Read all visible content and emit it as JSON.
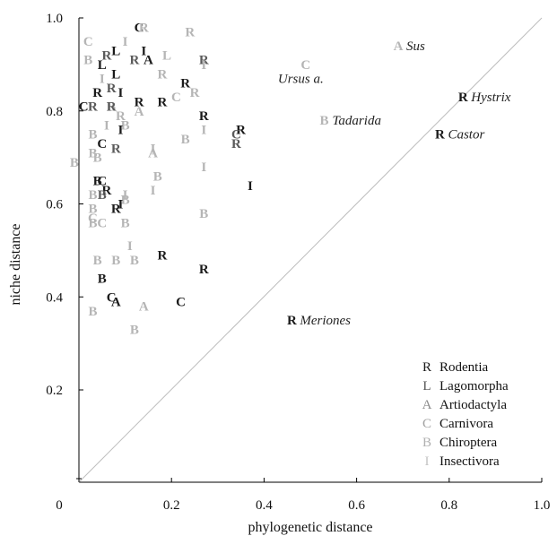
{
  "chart_data": {
    "type": "scatter",
    "xlabel": "phylogenetic distance",
    "ylabel": "niche distance",
    "xlim": [
      0,
      1.0
    ],
    "ylim": [
      0.2,
      1.0
    ],
    "x_ticks": [
      "0",
      "0.2",
      "0.4",
      "0.6",
      "0.8",
      "1.0"
    ],
    "y_ticks": [
      "0.2",
      "0.4",
      "0.6",
      "0.8",
      "1.0"
    ],
    "reference_line": "y = x",
    "legend_position": "bottom-right",
    "groups": [
      {
        "code": "R",
        "name": "Rodentia",
        "color": "#1a1a1a"
      },
      {
        "code": "L",
        "name": "Lagomorpha",
        "color": "#3c3c3c"
      },
      {
        "code": "A",
        "name": "Artiodactyla",
        "color": "#959595"
      },
      {
        "code": "C",
        "name": "Carnivora",
        "color": "#a8a8a8"
      },
      {
        "code": "B",
        "name": "Chiroptera",
        "color": "#b8b8b8"
      },
      {
        "code": "I",
        "name": "Insectivora",
        "color": "#c6c6c6"
      }
    ],
    "points": [
      {
        "g": "C",
        "x": 0.13,
        "y": 0.98,
        "s": "d"
      },
      {
        "g": "R",
        "x": 0.14,
        "y": 0.98,
        "s": "l"
      },
      {
        "g": "C",
        "x": 0.02,
        "y": 0.95,
        "s": "l"
      },
      {
        "g": "I",
        "x": 0.1,
        "y": 0.95,
        "s": "l"
      },
      {
        "g": "R",
        "x": 0.24,
        "y": 0.97,
        "s": "l"
      },
      {
        "g": "I",
        "x": 0.14,
        "y": 0.93,
        "s": "d"
      },
      {
        "g": "L",
        "x": 0.08,
        "y": 0.93,
        "s": "d"
      },
      {
        "g": "R",
        "x": 0.06,
        "y": 0.92,
        "s": "m"
      },
      {
        "g": "L",
        "x": 0.19,
        "y": 0.92,
        "s": "l"
      },
      {
        "g": "R",
        "x": 0.12,
        "y": 0.91,
        "s": "m"
      },
      {
        "g": "A",
        "x": 0.15,
        "y": 0.91,
        "s": "d"
      },
      {
        "g": "R",
        "x": 0.27,
        "y": 0.91,
        "s": "m"
      },
      {
        "g": "B",
        "x": 0.02,
        "y": 0.91,
        "s": "l"
      },
      {
        "g": "L",
        "x": 0.05,
        "y": 0.9,
        "s": "d"
      },
      {
        "g": "I",
        "x": 0.27,
        "y": 0.9,
        "s": "l"
      },
      {
        "g": "L",
        "x": 0.08,
        "y": 0.88,
        "s": "d"
      },
      {
        "g": "R",
        "x": 0.18,
        "y": 0.88,
        "s": "l"
      },
      {
        "g": "I",
        "x": 0.05,
        "y": 0.87,
        "s": "l"
      },
      {
        "g": "R",
        "x": 0.23,
        "y": 0.86,
        "s": "d"
      },
      {
        "g": "R",
        "x": 0.07,
        "y": 0.85,
        "s": "m"
      },
      {
        "g": "R",
        "x": 0.04,
        "y": 0.84,
        "s": "d"
      },
      {
        "g": "I",
        "x": 0.09,
        "y": 0.84,
        "s": "d"
      },
      {
        "g": "R",
        "x": 0.25,
        "y": 0.84,
        "s": "l"
      },
      {
        "g": "C",
        "x": 0.21,
        "y": 0.83,
        "s": "l"
      },
      {
        "g": "R",
        "x": 0.13,
        "y": 0.82,
        "s": "d"
      },
      {
        "g": "R",
        "x": 0.18,
        "y": 0.82,
        "s": "d"
      },
      {
        "g": "B",
        "x": 0.07,
        "y": 0.81,
        "s": "l"
      },
      {
        "g": "R",
        "x": 0.07,
        "y": 0.81,
        "s": "m"
      },
      {
        "g": "C",
        "x": 0.01,
        "y": 0.81,
        "s": "d"
      },
      {
        "g": "R",
        "x": 0.03,
        "y": 0.81,
        "s": "m"
      },
      {
        "g": "A",
        "x": 0.13,
        "y": 0.8,
        "s": "l"
      },
      {
        "g": "R",
        "x": 0.09,
        "y": 0.79,
        "s": "l"
      },
      {
        "g": "R",
        "x": 0.27,
        "y": 0.79,
        "s": "d"
      },
      {
        "g": "I",
        "x": 0.06,
        "y": 0.77,
        "s": "l"
      },
      {
        "g": "B",
        "x": 0.1,
        "y": 0.77,
        "s": "l"
      },
      {
        "g": "I",
        "x": 0.09,
        "y": 0.76,
        "s": "d"
      },
      {
        "g": "I",
        "x": 0.27,
        "y": 0.76,
        "s": "l"
      },
      {
        "g": "R",
        "x": 0.35,
        "y": 0.76,
        "s": "d"
      },
      {
        "g": "C",
        "x": 0.34,
        "y": 0.75,
        "s": "m"
      },
      {
        "g": "B",
        "x": 0.03,
        "y": 0.75,
        "s": "l"
      },
      {
        "g": "B",
        "x": 0.23,
        "y": 0.74,
        "s": "l"
      },
      {
        "g": "R",
        "x": 0.34,
        "y": 0.73,
        "s": "m"
      },
      {
        "g": "C",
        "x": 0.05,
        "y": 0.73,
        "s": "d"
      },
      {
        "g": "R",
        "x": 0.08,
        "y": 0.72,
        "s": "m"
      },
      {
        "g": "I",
        "x": 0.16,
        "y": 0.72,
        "s": "l"
      },
      {
        "g": "A",
        "x": 0.16,
        "y": 0.71,
        "s": "l"
      },
      {
        "g": "B",
        "x": 0.03,
        "y": 0.71,
        "s": "l"
      },
      {
        "g": "B",
        "x": 0.04,
        "y": 0.7,
        "s": "l"
      },
      {
        "g": "B",
        "x": -0.01,
        "y": 0.69,
        "s": "l"
      },
      {
        "g": "I",
        "x": 0.27,
        "y": 0.68,
        "s": "l"
      },
      {
        "g": "B",
        "x": 0.17,
        "y": 0.66,
        "s": "l"
      },
      {
        "g": "B",
        "x": 0.04,
        "y": 0.65,
        "s": "d"
      },
      {
        "g": "C",
        "x": 0.05,
        "y": 0.65,
        "s": "d"
      },
      {
        "g": "I",
        "x": 0.37,
        "y": 0.64,
        "s": "d"
      },
      {
        "g": "R",
        "x": 0.06,
        "y": 0.63,
        "s": "d"
      },
      {
        "g": "B",
        "x": 0.05,
        "y": 0.62,
        "s": "m"
      },
      {
        "g": "I",
        "x": 0.16,
        "y": 0.63,
        "s": "l"
      },
      {
        "g": "B",
        "x": 0.03,
        "y": 0.62,
        "s": "l"
      },
      {
        "g": "I",
        "x": 0.1,
        "y": 0.62,
        "s": "l"
      },
      {
        "g": "B",
        "x": 0.1,
        "y": 0.61,
        "s": "l"
      },
      {
        "g": "I",
        "x": 0.09,
        "y": 0.6,
        "s": "d"
      },
      {
        "g": "B",
        "x": 0.03,
        "y": 0.59,
        "s": "l"
      },
      {
        "g": "R",
        "x": 0.08,
        "y": 0.59,
        "s": "d"
      },
      {
        "g": "B",
        "x": 0.27,
        "y": 0.58,
        "s": "l"
      },
      {
        "g": "C",
        "x": 0.03,
        "y": 0.57,
        "s": "l"
      },
      {
        "g": "B",
        "x": 0.03,
        "y": 0.56,
        "s": "l"
      },
      {
        "g": "C",
        "x": 0.05,
        "y": 0.56,
        "s": "l"
      },
      {
        "g": "B",
        "x": 0.1,
        "y": 0.56,
        "s": "l"
      },
      {
        "g": "I",
        "x": 0.11,
        "y": 0.51,
        "s": "l"
      },
      {
        "g": "R",
        "x": 0.18,
        "y": 0.49,
        "s": "d"
      },
      {
        "g": "B",
        "x": 0.12,
        "y": 0.48,
        "s": "l"
      },
      {
        "g": "B",
        "x": 0.04,
        "y": 0.48,
        "s": "l"
      },
      {
        "g": "B",
        "x": 0.08,
        "y": 0.48,
        "s": "l"
      },
      {
        "g": "R",
        "x": 0.27,
        "y": 0.46,
        "s": "d"
      },
      {
        "g": "B",
        "x": 0.05,
        "y": 0.44,
        "s": "d"
      },
      {
        "g": "C",
        "x": 0.07,
        "y": 0.4,
        "s": "d"
      },
      {
        "g": "A",
        "x": 0.08,
        "y": 0.39,
        "s": "d"
      },
      {
        "g": "C",
        "x": 0.22,
        "y": 0.39,
        "s": "d"
      },
      {
        "g": "A",
        "x": 0.14,
        "y": 0.38,
        "s": "l"
      },
      {
        "g": "B",
        "x": 0.03,
        "y": 0.37,
        "s": "l"
      },
      {
        "g": "B",
        "x": 0.12,
        "y": 0.33,
        "s": "l"
      }
    ],
    "annotations": [
      {
        "g": "A",
        "x": 0.69,
        "y": 0.94,
        "label": "Sus",
        "s": "l"
      },
      {
        "g": "C",
        "x": 0.49,
        "y": 0.9,
        "label": "",
        "s": "l"
      },
      {
        "g": "B",
        "x": 0.53,
        "y": 0.78,
        "label": "Tadarida",
        "s": "l"
      },
      {
        "g": "R",
        "x": 0.83,
        "y": 0.83,
        "label": "Hystrix",
        "s": "d"
      },
      {
        "g": "R",
        "x": 0.78,
        "y": 0.75,
        "label": "Castor",
        "s": "d"
      },
      {
        "g": "R",
        "x": 0.46,
        "y": 0.35,
        "label": "Meriones",
        "s": "d"
      }
    ],
    "extra_labels": [
      {
        "x": 0.43,
        "y": 0.87,
        "label": "Ursus a."
      }
    ]
  }
}
